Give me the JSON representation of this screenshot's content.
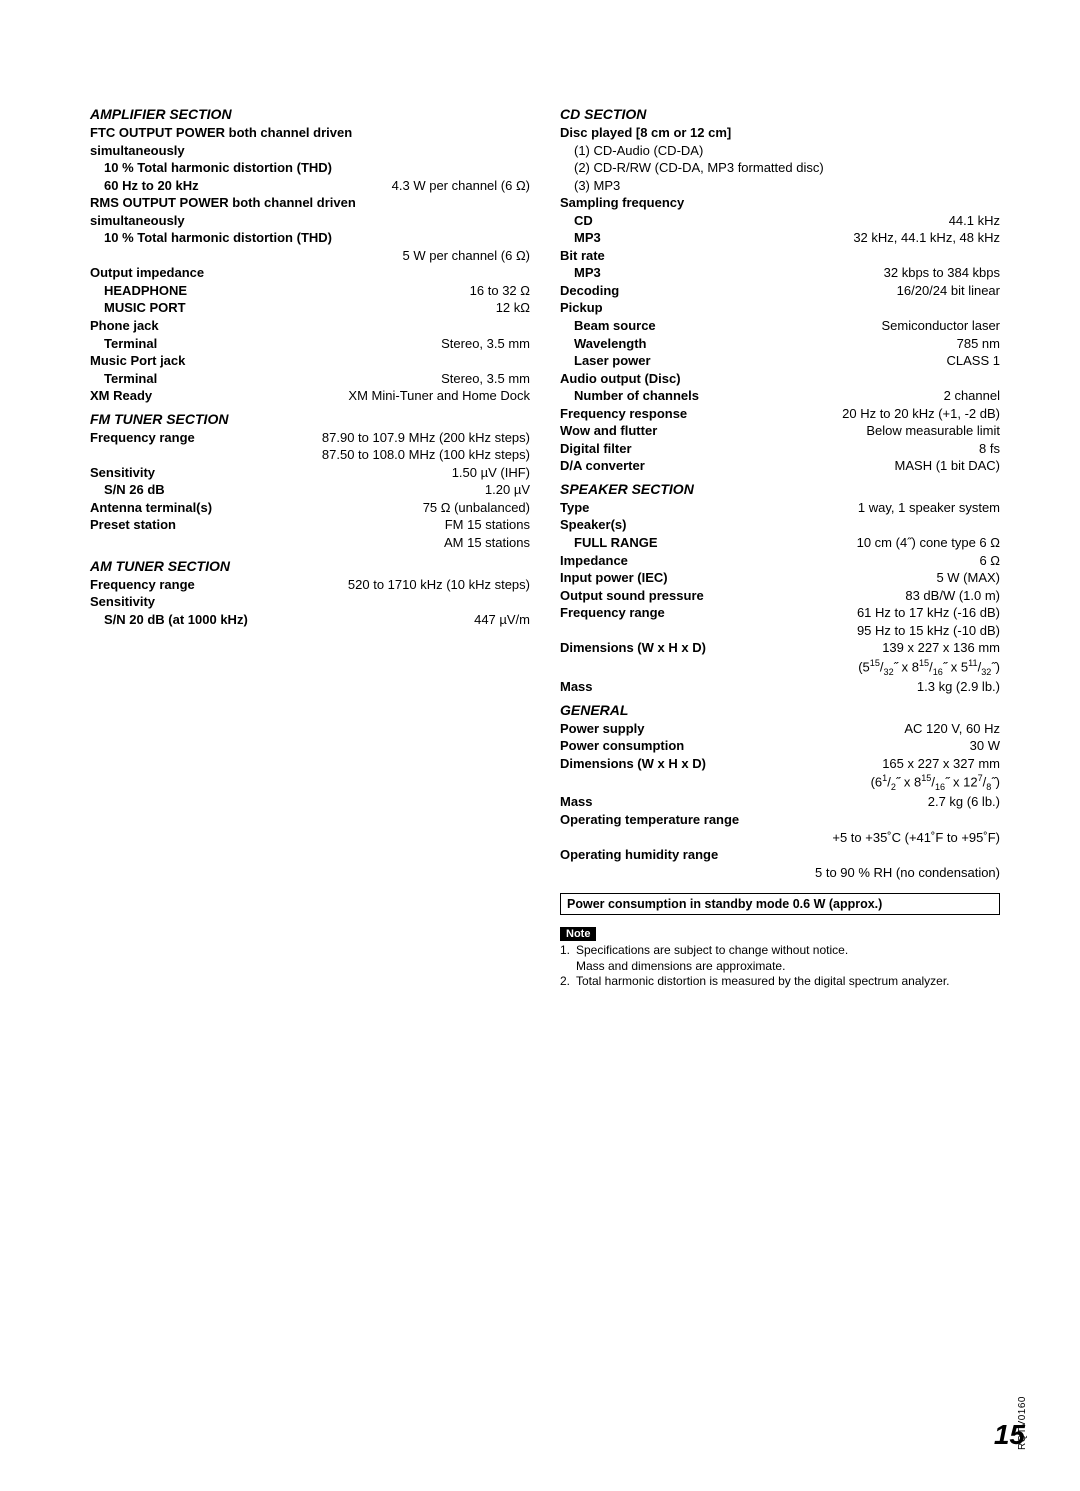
{
  "left": {
    "amp": {
      "title": "AMPLIFIER SECTION",
      "ftc1": "FTC OUTPUT POWER both channel driven",
      "ftc2": "simultaneously",
      "thd": "10 % Total harmonic distortion (THD)",
      "sixty": "60 Hz to 20 kHz",
      "sixty_v": "4.3 W per channel (6 Ω)",
      "rms1": "RMS OUTPUT POWER both channel driven",
      "rms2": "simultaneously",
      "rms_v": "5 W per channel (6 Ω)",
      "out_imp": "Output impedance",
      "head": "HEADPHONE",
      "head_v": "16 to 32 Ω",
      "mport": "MUSIC PORT",
      "mport_v": "12 kΩ",
      "pjack": "Phone jack",
      "term": "Terminal",
      "term_v": "Stereo, 3.5 mm",
      "mpjack": "Music Port jack",
      "term2": "Terminal",
      "term2_v": "Stereo, 3.5 mm",
      "xm": "XM Ready",
      "xm_v": "XM Mini-Tuner and Home Dock"
    },
    "fm": {
      "title": "FM TUNER SECTION",
      "fr": "Frequency range",
      "fr_v1": "87.90 to 107.9 MHz (200 kHz steps)",
      "fr_v2": "87.50 to 108.0 MHz (100 kHz steps)",
      "sens": "Sensitivity",
      "sens_v": "1.50 µV (IHF)",
      "sn": "S/N 26 dB",
      "sn_v": "1.20 µV",
      "ant": "Antenna terminal(s)",
      "ant_v": "75 Ω (unbalanced)",
      "preset": "Preset station",
      "preset_v1": "FM 15 stations",
      "preset_v2": "AM 15 stations"
    },
    "am": {
      "title": "AM TUNER SECTION",
      "fr": "Frequency range",
      "fr_v": "520 to 1710 kHz (10 kHz steps)",
      "sens": "Sensitivity",
      "sn": "S/N 20 dB (at 1000 kHz)",
      "sn_v": "447 µV/m"
    }
  },
  "right": {
    "cd": {
      "title": "CD SECTION",
      "disc": "Disc played [8 cm or 12 cm]",
      "d1": "(1) CD-Audio (CD-DA)",
      "d2": "(2) CD-R/RW (CD-DA, MP3 formatted disc)",
      "d3": "(3) MP3",
      "sf": "Sampling frequency",
      "sf_cd": "CD",
      "sf_cd_v": "44.1 kHz",
      "sf_mp3": "MP3",
      "sf_mp3_v": "32 kHz, 44.1 kHz, 48 kHz",
      "br": "Bit rate",
      "br_mp3": "MP3",
      "br_mp3_v": "32 kbps to 384 kbps",
      "dec": "Decoding",
      "dec_v": "16/20/24 bit linear",
      "pu": "Pickup",
      "bs": "Beam source",
      "bs_v": "Semiconductor laser",
      "wl": "Wavelength",
      "wl_v": "785 nm",
      "lp": "Laser power",
      "lp_v": "CLASS 1",
      "ao": "Audio output (Disc)",
      "nc": "Number of channels",
      "nc_v": "2 channel",
      "fresp": "Frequency response",
      "fresp_v": "20 Hz to 20 kHz (+1, -2 dB)",
      "wf": "Wow and flutter",
      "wf_v": "Below measurable limit",
      "df": "Digital filter",
      "df_v": "8 fs",
      "da": "D/A converter",
      "da_v": "MASH (1 bit DAC)"
    },
    "sp": {
      "title": "SPEAKER SECTION",
      "type": "Type",
      "type_v": "1 way, 1 speaker system",
      "sps": "Speaker(s)",
      "fr": "FULL RANGE",
      "fr_v": "10 cm (4˝) cone type 6 Ω",
      "imp": "Impedance",
      "imp_v": "6 Ω",
      "ip": "Input power (IEC)",
      "ip_v": "5 W (MAX)",
      "osp": "Output sound pressure",
      "osp_v": "83 dB/W (1.0 m)",
      "freq": "Frequency range",
      "freq_v1": "61 Hz to 17 kHz (-16 dB)",
      "freq_v2": "95 Hz to 15 kHz (-10 dB)",
      "dim": "Dimensions (W x H x D)",
      "dim_v1": "139 x 227 x 136 mm",
      "mass": "Mass",
      "mass_v": "1.3 kg (2.9 lb.)"
    },
    "gen": {
      "title": "GENERAL",
      "ps": "Power supply",
      "ps_v": "AC 120 V, 60 Hz",
      "pc": "Power consumption",
      "pc_v": "30 W",
      "dim": "Dimensions (W x H x D)",
      "dim_v1": "165 x 227 x 327 mm",
      "mass": "Mass",
      "mass_v": "2.7 kg (6 lb.)",
      "otr": "Operating temperature range",
      "otr_v": "+5 to +35˚C (+41˚F to +95˚F)",
      "ohr": "Operating humidity range",
      "ohr_v": "5 to 90 % RH (no condensation)"
    },
    "boxed": "Power consumption in standby mode 0.6 W (approx.)",
    "note_label": "Note",
    "note1a": "Specifications are subject to change without notice.",
    "note1b": "Mass and dimensions are approximate.",
    "note2": "Total harmonic distortion is measured by the digital spectrum analyzer."
  },
  "page_number": "15",
  "side_code": "RQTV0160"
}
